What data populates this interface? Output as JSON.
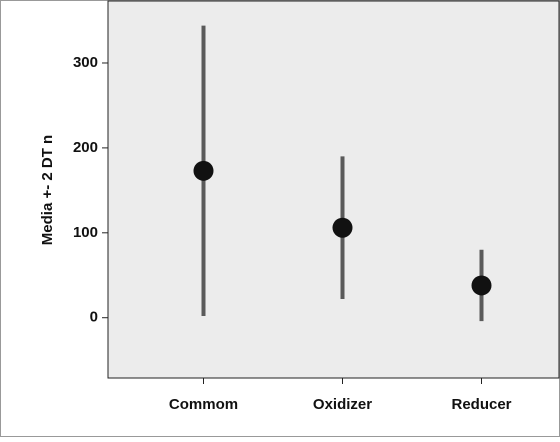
{
  "chart_data": {
    "type": "errorbar",
    "y_label": "Media +- 2 DT n",
    "categories": [
      "Commom",
      "Oxidizer",
      "Reducer"
    ],
    "values": [
      173,
      106,
      38
    ],
    "errors": [
      171,
      84,
      42
    ],
    "color": "#111111",
    "bar_color": "#5a5a5a",
    "ylim": [
      -71,
      373
    ],
    "yticks": [
      0,
      100,
      200,
      300
    ]
  }
}
